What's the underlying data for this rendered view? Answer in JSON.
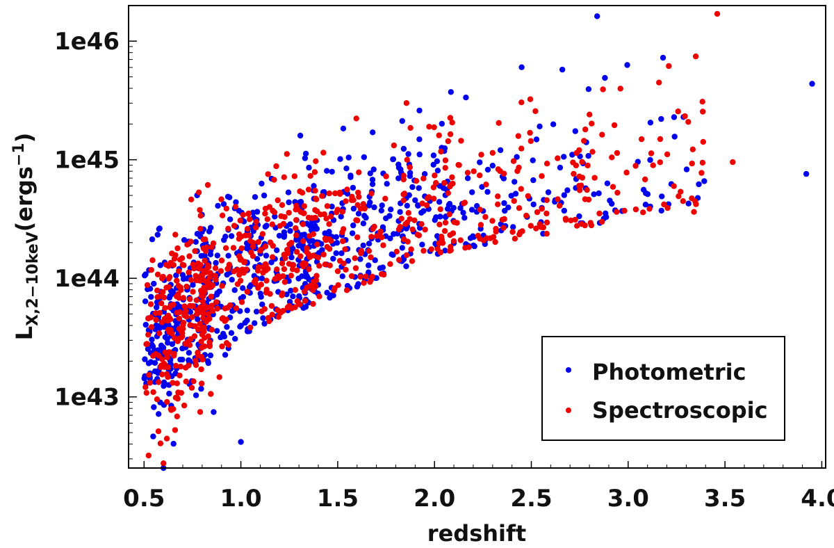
{
  "chart_data": {
    "type": "scatter",
    "title": "",
    "xlabel": "redshift",
    "ylabel_main": "L",
    "ylabel_sub": "X,2−10keV",
    "ylabel_unit_open": "(erg",
    "ylabel_unit_s": "s",
    "ylabel_unit_sup": "−1",
    "ylabel_unit_close": ")",
    "yscale": "log",
    "xlim": [
      0.42,
      4.02
    ],
    "ylim_log10": [
      42.4,
      46.3
    ],
    "x_ticks": [
      0.5,
      1.0,
      1.5,
      2.0,
      2.5,
      3.0,
      3.5,
      4.0
    ],
    "x_tick_labels": [
      "0.5",
      "1.0",
      "1.5",
      "2.0",
      "2.5",
      "3.0",
      "3.5",
      "4.0"
    ],
    "y_ticks_log10": [
      43,
      44,
      45,
      46
    ],
    "y_tick_labels": [
      "1e43",
      "1e44",
      "1e45",
      "1e46"
    ],
    "legend_position": "lower-right",
    "grid": false,
    "series": [
      {
        "name": "Photometric",
        "color": "#0000ee",
        "distribution": "many points concentrated along an increasing band; approximate random sample reconstruction",
        "notable_points": [
          {
            "x": 2.84,
            "log10_L": 46.21
          },
          {
            "x": 3.18,
            "log10_L": 45.86
          },
          {
            "x": 3.95,
            "log10_L": 45.64
          },
          {
            "x": 3.92,
            "log10_L": 44.88
          },
          {
            "x": 2.45,
            "log10_L": 45.78
          },
          {
            "x": 2.66,
            "log10_L": 45.76
          },
          {
            "x": 2.88,
            "log10_L": 45.69
          },
          {
            "x": 1.0,
            "log10_L": 42.62
          },
          {
            "x": 0.6,
            "log10_L": 42.4
          }
        ]
      },
      {
        "name": "Spectroscopic",
        "color": "#ee0000",
        "distribution": "many points concentrated along an increasing band; approximate random sample reconstruction",
        "notable_points": [
          {
            "x": 3.46,
            "log10_L": 46.23
          },
          {
            "x": 3.21,
            "log10_L": 45.79
          },
          {
            "x": 2.96,
            "log10_L": 45.6
          },
          {
            "x": 3.54,
            "log10_L": 44.98
          },
          {
            "x": 3.34,
            "log10_L": 44.56
          },
          {
            "x": 0.6,
            "log10_L": 42.44
          },
          {
            "x": 0.66,
            "log10_L": 42.72
          }
        ]
      }
    ]
  }
}
